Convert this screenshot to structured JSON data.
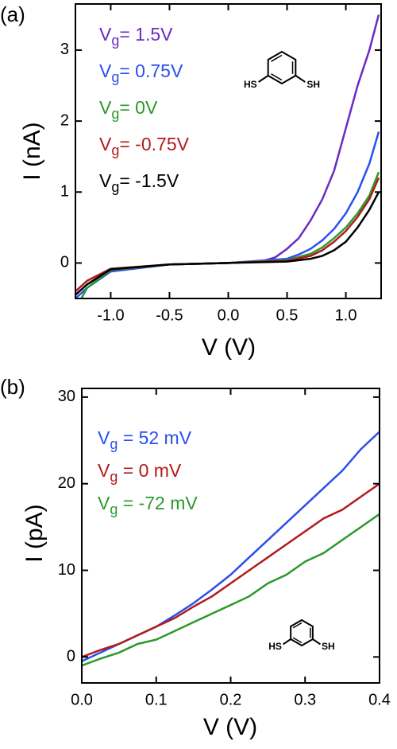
{
  "chart_data": [
    {
      "type": "line",
      "panel_label": "(a)",
      "xlabel": "V (V)",
      "ylabel": "I (nA)",
      "xlim": [
        -1.3,
        1.3
      ],
      "ylim": [
        -0.5,
        3.65
      ],
      "xticks": [
        {
          "value": -1.0,
          "label": "-1.0"
        },
        -0.5,
        {
          "value": 0,
          "label": "0.0"
        },
        0.5,
        {
          "value": 1.0,
          "label": "1.0"
        }
      ],
      "yticks": [
        0,
        1,
        2,
        3
      ],
      "molecule_labels": [
        "HS",
        "SH"
      ],
      "series": [
        {
          "name": "Vg= 1.5V",
          "color": "#6a2bc4",
          "x": [
            -1.3,
            -1.2,
            -1.0,
            -0.5,
            0,
            0.3,
            0.4,
            0.5,
            0.6,
            0.7,
            0.8,
            0.9,
            1.0,
            1.1,
            1.2,
            1.28
          ],
          "values": [
            -0.45,
            -0.3,
            -0.1,
            -0.02,
            0,
            0.03,
            0.08,
            0.2,
            0.35,
            0.6,
            0.9,
            1.3,
            1.9,
            2.5,
            3.0,
            3.5
          ]
        },
        {
          "name": "Vg= 0.75V",
          "color": "#2a4ff0",
          "x": [
            -1.3,
            -1.2,
            -1.0,
            -0.5,
            0,
            0.5,
            0.6,
            0.7,
            0.8,
            0.9,
            1.0,
            1.1,
            1.2,
            1.28
          ],
          "values": [
            -0.5,
            -0.35,
            -0.12,
            -0.02,
            0,
            0.06,
            0.12,
            0.2,
            0.32,
            0.48,
            0.7,
            1.0,
            1.4,
            1.85
          ]
        },
        {
          "name": "Vg= 0V",
          "color": "#2a9a2a",
          "x": [
            -1.25,
            -1.2,
            -1.0,
            -0.5,
            0,
            0.5,
            0.7,
            0.8,
            0.9,
            1.0,
            1.1,
            1.2,
            1.28
          ],
          "values": [
            -0.5,
            -0.35,
            -0.1,
            -0.02,
            0,
            0.04,
            0.13,
            0.22,
            0.35,
            0.5,
            0.7,
            0.95,
            1.28
          ]
        },
        {
          "name": "Vg= -0.75V",
          "color": "#b01c1c",
          "x": [
            -1.3,
            -1.2,
            -1.0,
            -0.5,
            0,
            0.5,
            0.7,
            0.8,
            0.9,
            1.0,
            1.1,
            1.2,
            1.28
          ],
          "values": [
            -0.4,
            -0.25,
            -0.08,
            -0.02,
            0,
            0.03,
            0.1,
            0.18,
            0.3,
            0.45,
            0.65,
            0.9,
            1.2
          ]
        },
        {
          "name": "Vg= -1.5V",
          "color": "#000000",
          "x": [
            -1.3,
            -1.2,
            -1.0,
            -0.5,
            0,
            0.5,
            0.7,
            0.8,
            0.9,
            1.0,
            1.1,
            1.2,
            1.28
          ],
          "values": [
            -0.45,
            -0.3,
            -0.09,
            -0.02,
            0,
            0.02,
            0.06,
            0.1,
            0.18,
            0.3,
            0.5,
            0.75,
            1.0
          ]
        }
      ]
    },
    {
      "type": "line",
      "panel_label": "(b)",
      "xlabel": "V (V)",
      "ylabel": "I (pA)",
      "xlim": [
        0,
        0.4
      ],
      "ylim": [
        -3,
        31
      ],
      "xticks": [
        {
          "value": 0,
          "label": "0.0"
        },
        0.1,
        0.2,
        0.3,
        0.4
      ],
      "yticks": [
        0,
        10,
        20,
        30
      ],
      "molecule_labels": [
        "HS",
        "SH"
      ],
      "x": [
        0,
        0.025,
        0.05,
        0.075,
        0.1,
        0.125,
        0.15,
        0.175,
        0.2,
        0.225,
        0.25,
        0.275,
        0.3,
        0.325,
        0.35,
        0.375,
        0.4
      ],
      "series": [
        {
          "name": "Vg = 52 mV",
          "color": "#2a4ff0",
          "values": [
            -0.5,
            0.5,
            1.5,
            2.5,
            3.5,
            4.8,
            6.2,
            7.8,
            9.5,
            11.5,
            13.5,
            15.5,
            17.5,
            19.5,
            21.5,
            24,
            26
          ]
        },
        {
          "name": "Vg = 0 mV",
          "color": "#b01c1c",
          "values": [
            0,
            0.8,
            1.5,
            2.5,
            3.5,
            4.5,
            5.8,
            7,
            8.5,
            10,
            11.5,
            13,
            14.5,
            16,
            17,
            18.5,
            20
          ]
        },
        {
          "name": "Vg = -72 mV",
          "color": "#2a9a2a",
          "values": [
            -1,
            -0.2,
            0.5,
            1.5,
            2,
            3,
            4,
            5,
            6,
            7,
            8.5,
            9.5,
            11,
            12,
            13.5,
            15,
            16.5
          ]
        }
      ]
    }
  ]
}
